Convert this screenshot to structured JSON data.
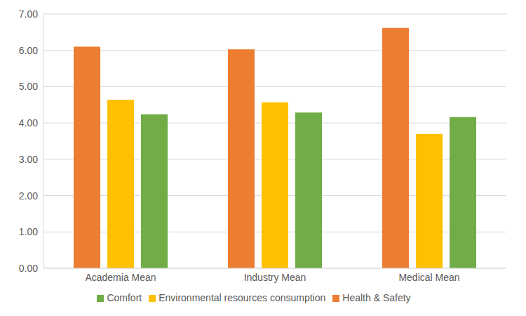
{
  "chart_data": {
    "type": "bar",
    "categories": [
      "Academia Mean",
      "Industry Mean",
      "Medical Mean"
    ],
    "series": [
      {
        "name": "Health & Safety",
        "color": "#ed7d31",
        "values": [
          6.1,
          6.03,
          6.62
        ]
      },
      {
        "name": "Environmental resources consumption",
        "color": "#ffc000",
        "values": [
          4.64,
          4.57,
          3.7
        ]
      },
      {
        "name": "Comfort",
        "color": "#70ad47",
        "values": [
          4.24,
          4.29,
          4.16
        ]
      }
    ],
    "ylim": [
      0,
      7
    ],
    "yticks": [
      {
        "value": 0,
        "label": "0.00"
      },
      {
        "value": 1,
        "label": "1.00"
      },
      {
        "value": 2,
        "label": "2.00"
      },
      {
        "value": 3,
        "label": "3.00"
      },
      {
        "value": 4,
        "label": "4.00"
      },
      {
        "value": 5,
        "label": "5.00"
      },
      {
        "value": 6,
        "label": "6.00"
      },
      {
        "value": 7,
        "label": "7.00"
      }
    ],
    "grid": true,
    "legend": "bottom"
  }
}
